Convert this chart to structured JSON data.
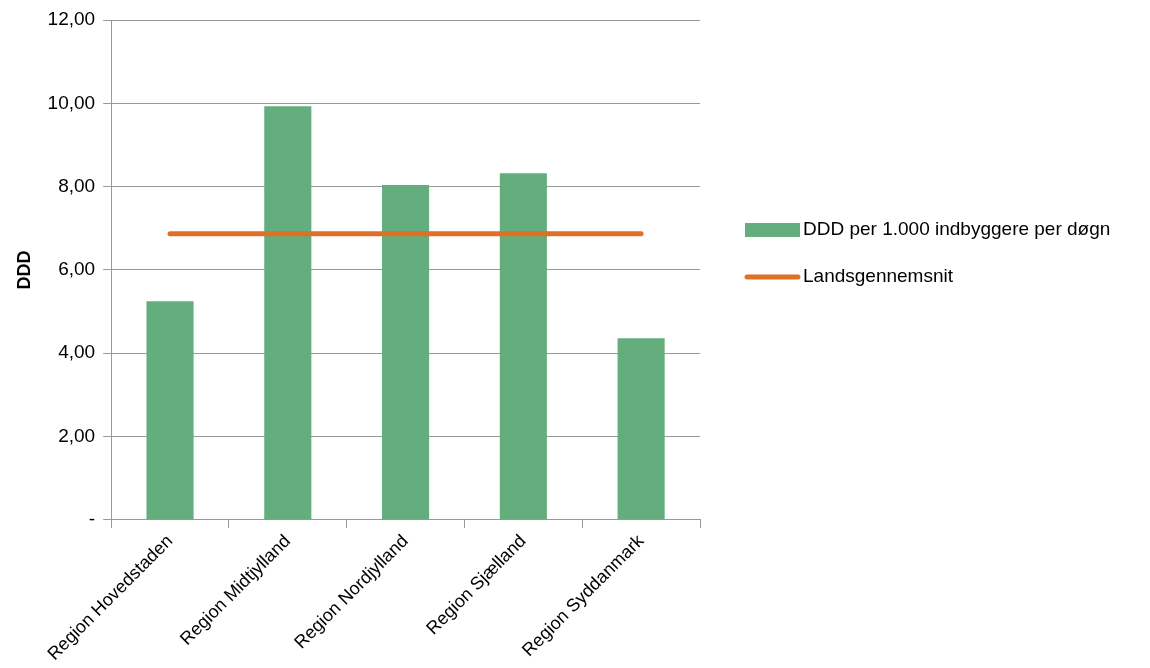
{
  "chart_data": {
    "type": "bar",
    "ylabel": "DDD",
    "categories": [
      "Region Hovedstaden",
      "Region Midtjylland",
      "Region Nordjylland",
      "Region Sjælland",
      "Region Syddanmark"
    ],
    "series": [
      {
        "name": "DDD per 1.000 indbyggere per døgn",
        "color": "#63ae7c",
        "values": [
          5.25,
          9.93,
          8.04,
          8.32,
          4.36
        ]
      },
      {
        "name": "Landsgennemsnit",
        "type": "line",
        "color": "#e07025",
        "values": [
          6.87,
          6.87,
          6.87,
          6.87,
          6.87
        ]
      }
    ],
    "ylim": [
      0,
      12
    ],
    "yticks": [
      {
        "value": 0,
        "label": "-"
      },
      {
        "value": 2,
        "label": "2,00"
      },
      {
        "value": 4,
        "label": "4,00"
      },
      {
        "value": 6,
        "label": "6,00"
      },
      {
        "value": 8,
        "label": "8,00"
      },
      {
        "value": 10,
        "label": "10,00"
      },
      {
        "value": 12,
        "label": "12,00"
      }
    ],
    "grid": "y",
    "legend": "right",
    "marker": "none"
  }
}
